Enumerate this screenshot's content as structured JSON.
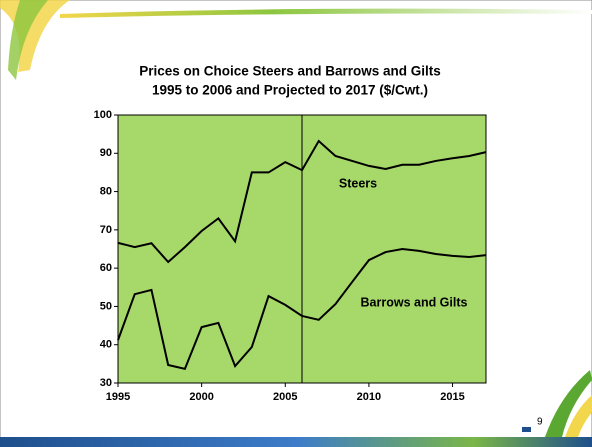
{
  "chart_data": {
    "type": "line",
    "title": [
      "Prices on Choice Steers and Barrows and Gilts",
      "1995 to 2006 and Projected to 2017 ($/Cwt.)"
    ],
    "x": [
      1995,
      1996,
      1997,
      1998,
      1999,
      2000,
      2001,
      2002,
      2003,
      2004,
      2005,
      2006,
      2007,
      2008,
      2009,
      2010,
      2011,
      2012,
      2013,
      2014,
      2015,
      2016,
      2017
    ],
    "series": [
      {
        "name": "Steers",
        "color": "#000000",
        "values": [
          66.6,
          65.5,
          66.5,
          61.6,
          65.5,
          69.7,
          73,
          67,
          85,
          85,
          87.7,
          85.6,
          93.2,
          89.3,
          88,
          86.7,
          85.9,
          87,
          87,
          88,
          88.7,
          89.3,
          90.3
        ]
      },
      {
        "name": "Barrows and Gilts",
        "color": "#000000",
        "values": [
          41.2,
          53.2,
          54.3,
          34.7,
          33.7,
          44.6,
          45.7,
          34.4,
          39.4,
          52.7,
          50.4,
          47.5,
          46.5,
          50.6,
          56.4,
          62.1,
          64.2,
          65,
          64.5,
          63.7,
          63.2,
          62.9,
          63.4
        ]
      }
    ],
    "projection_start": 2006,
    "xlim": [
      1995,
      2017
    ],
    "xticks": [
      1995,
      2000,
      2005,
      2010,
      2015
    ],
    "ylim": [
      30,
      100
    ],
    "yticks": [
      30,
      40,
      50,
      60,
      70,
      80,
      90,
      100
    ],
    "plot_background": "#a6d96a",
    "grid": false
  },
  "page_number": "9"
}
